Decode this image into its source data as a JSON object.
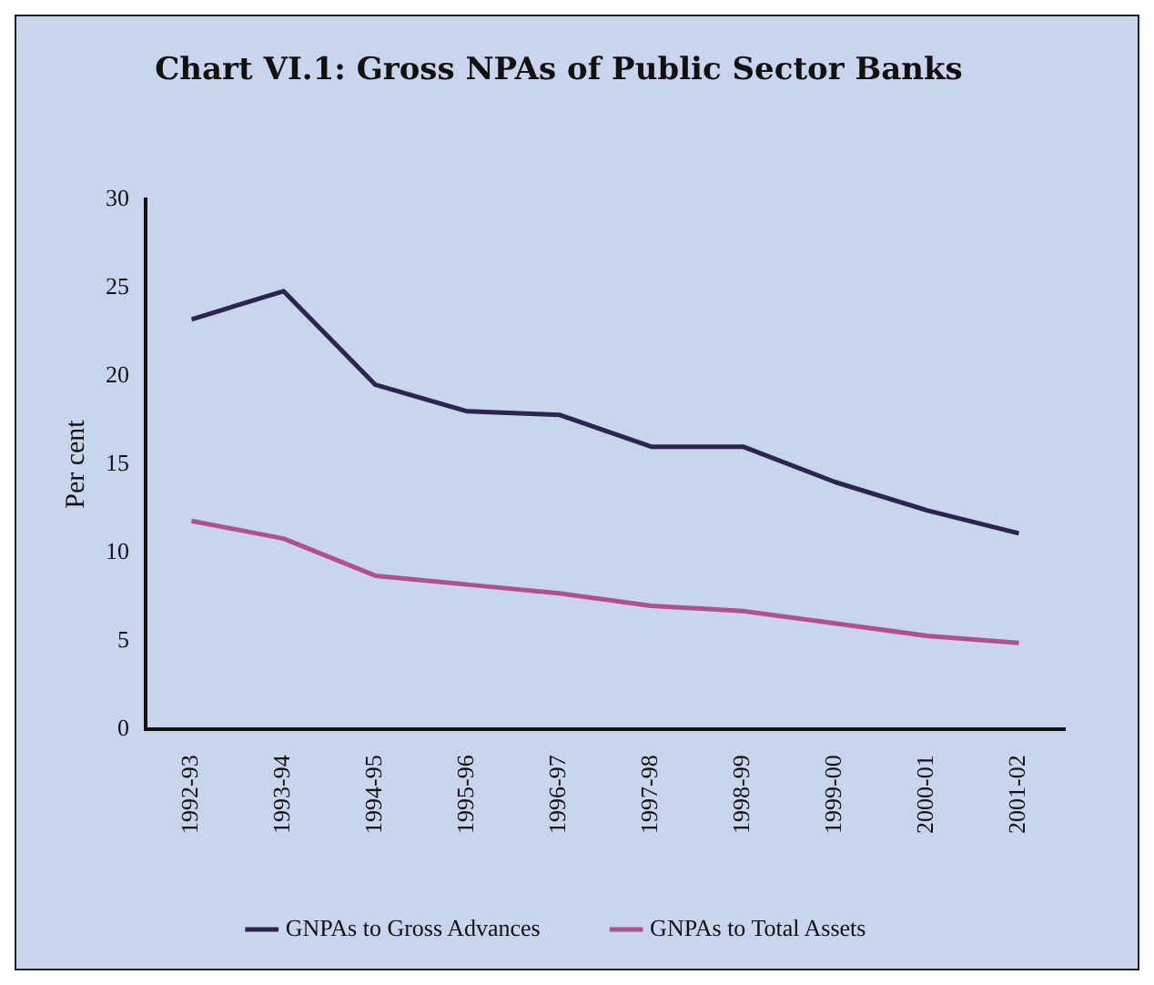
{
  "chart_data": {
    "type": "line",
    "title": "Chart VI.1: Gross NPAs of Public Sector Banks",
    "ylabel": "Per cent",
    "categories": [
      "1992-93",
      "1993-94",
      "1994-95",
      "1995-96",
      "1996-97",
      "1997-98",
      "1998-99",
      "1999-00",
      "2000-01",
      "2001-02"
    ],
    "series": [
      {
        "name": "GNPAs to Gross Advances",
        "color": "#2b2550",
        "values": [
          23.2,
          24.8,
          19.5,
          18.0,
          17.8,
          16.0,
          16.0,
          14.0,
          12.4,
          11.1
        ]
      },
      {
        "name": "GNPAs to Total Assets",
        "color": "#b0508f",
        "values": [
          11.8,
          10.8,
          8.7,
          8.2,
          7.7,
          7.0,
          6.7,
          6.0,
          5.3,
          4.9
        ]
      }
    ],
    "ylim": [
      0,
      30
    ],
    "yticks": [
      0,
      5,
      10,
      15,
      20,
      25,
      30
    ],
    "grid": false,
    "legend": "bottom",
    "marker": "none",
    "line_style": "solid"
  }
}
